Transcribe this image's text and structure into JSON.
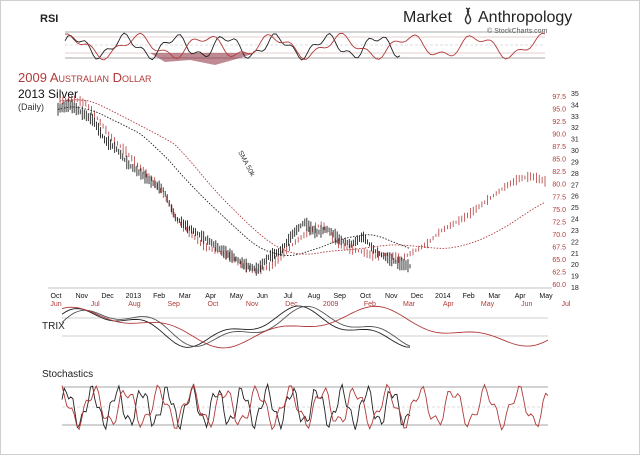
{
  "header": {
    "brand_left": "Market",
    "brand_right": "Anthropology",
    "credit": "© StockCharts.com",
    "logo_icon": "dna-helix-icon"
  },
  "rsi_label": "RSI",
  "trix_label": "TRIX",
  "stochastics_label": "Stochastics",
  "main": {
    "title_red": "2009 Australian Dollar",
    "title_black": "2013 Silver",
    "subtitle": "(Daily)",
    "sma_label": "SMA 50k"
  },
  "colors": {
    "aud": "#b23a3a",
    "silver": "#222222",
    "panel_line": "#9a9a9a",
    "fill": "#8b2a3a"
  },
  "chart_data": [
    {
      "type": "line",
      "panel": "RSI",
      "title": "RSI",
      "series": []
    },
    {
      "type": "line",
      "panel": "price",
      "title": "2009 Australian Dollar / 2013 Silver (Daily)",
      "x_top_ticks": [
        "Oct",
        "Nov",
        "Dec",
        "2013",
        "Feb",
        "Mar",
        "Apr",
        "May",
        "Jun",
        "Jul",
        "Aug",
        "Sep",
        "Oct",
        "Nov",
        "Dec",
        "2014",
        "Feb",
        "Mar",
        "Apr",
        "May"
      ],
      "x_bottom_ticks": [
        "Jun",
        "Jul",
        "Aug",
        "Sep",
        "Oct",
        "Nov",
        "Dec",
        "2009",
        "Feb",
        "Mar",
        "Apr",
        "May",
        "Jun",
        "Jul"
      ],
      "y_left_red_ticks": [
        "97.5",
        "95.0",
        "92.5",
        "90.0",
        "87.5",
        "85.0",
        "82.5",
        "80.0",
        "77.5",
        "75.0",
        "72.5",
        "70.0",
        "67.5",
        "65.0",
        "62.5",
        "60.0"
      ],
      "y_right_black_ticks": [
        "35",
        "34",
        "33",
        "32",
        "31",
        "30",
        "29",
        "28",
        "27",
        "26",
        "25",
        "24",
        "23",
        "22",
        "21",
        "20",
        "19",
        "18"
      ],
      "ylim_aud": [
        60,
        97.5
      ],
      "ylim_silver": [
        18,
        35
      ],
      "series": [
        {
          "name": "2013 Silver",
          "axis": "right",
          "values": [
            33.8,
            34.2,
            33.5,
            32.8,
            31.0,
            30.2,
            28.8,
            28.0,
            27.2,
            26.5,
            24.0,
            23.2,
            22.5,
            21.8,
            21.0,
            20.4,
            19.7,
            19.3,
            20.5,
            21.0,
            22.5,
            23.6,
            22.6,
            23.0,
            22.0,
            21.6,
            22.3,
            21.0,
            20.4,
            19.9,
            19.6
          ]
        },
        {
          "name": "2009 Australian Dollar",
          "axis": "left",
          "values": [
            96.5,
            97.0,
            96.0,
            92.5,
            89.0,
            86.5,
            83.5,
            81.0,
            77.5,
            72.5,
            70.0,
            67.5,
            66.5,
            65.5,
            63.5,
            62.5,
            63.5,
            66.0,
            68.5,
            70.5,
            72.0,
            68.5,
            67.0,
            66.5,
            65.5,
            66.0,
            65.0,
            66.5,
            68.0,
            70.5,
            72.0,
            73.5,
            75.5,
            77.5,
            79.5,
            81.0,
            81.5,
            80.5
          ]
        }
      ]
    },
    {
      "type": "line",
      "panel": "TRIX",
      "title": "TRIX",
      "series": []
    },
    {
      "type": "line",
      "panel": "Stochastics",
      "title": "Stochastics",
      "series": []
    }
  ]
}
